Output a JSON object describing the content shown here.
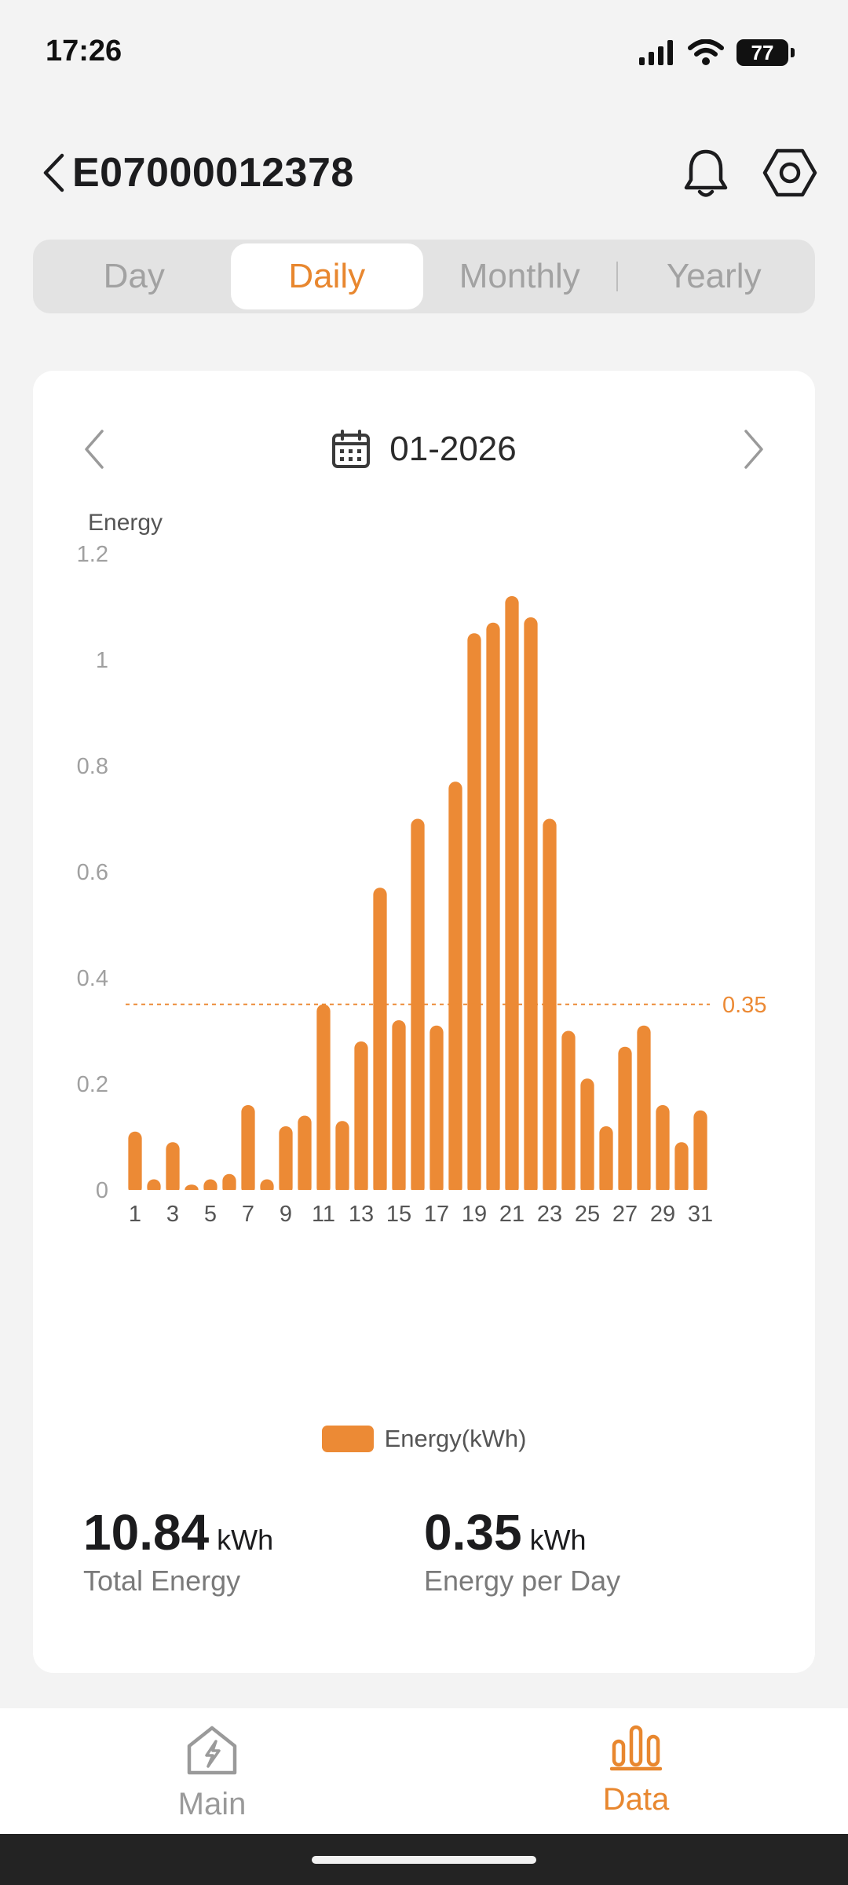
{
  "status_bar": {
    "time": "17:26",
    "battery": "77"
  },
  "header": {
    "title": "E07000012378"
  },
  "tabs": [
    {
      "label": "Day",
      "active": false
    },
    {
      "label": "Daily",
      "active": true
    },
    {
      "label": "Monthly",
      "active": false
    },
    {
      "label": "Yearly",
      "active": false
    }
  ],
  "period": {
    "label": "01-2026"
  },
  "chart_data": {
    "type": "bar",
    "ylabel": "Energy",
    "ylim": [
      0,
      1.2
    ],
    "yticks": [
      "0",
      "0.2",
      "0.4",
      "0.6",
      "0.8",
      "1",
      "1.2"
    ],
    "x": [
      1,
      2,
      3,
      4,
      5,
      6,
      7,
      8,
      9,
      10,
      11,
      12,
      13,
      14,
      15,
      16,
      17,
      18,
      19,
      20,
      21,
      22,
      23,
      24,
      25,
      26,
      27,
      28,
      29,
      30,
      31
    ],
    "xtick_labels": [
      "1",
      "3",
      "5",
      "7",
      "9",
      "11",
      "13",
      "15",
      "17",
      "19",
      "21",
      "23",
      "25",
      "27",
      "29",
      "31"
    ],
    "series": [
      {
        "name": "Energy(kWh)",
        "values": [
          0.11,
          0.02,
          0.09,
          0.01,
          0.02,
          0.03,
          0.16,
          0.02,
          0.12,
          0.14,
          0.35,
          0.13,
          0.28,
          0.57,
          0.32,
          0.7,
          0.31,
          0.77,
          1.05,
          1.07,
          1.12,
          1.08,
          0.7,
          0.3,
          0.21,
          0.12,
          0.27,
          0.31,
          0.16,
          0.09,
          0.15
        ]
      }
    ],
    "reference_line": {
      "value": 0.35,
      "label": "0.35"
    },
    "legend": [
      "Energy(kWh)"
    ],
    "color": "#ec8a35"
  },
  "stats": {
    "total": {
      "value": "10.84",
      "unit": "kWh",
      "label": "Total Energy"
    },
    "per_day": {
      "value": "0.35",
      "unit": "kWh",
      "label": "Energy per Day"
    }
  },
  "bottom_nav": {
    "main": {
      "label": "Main",
      "icon": "home-bolt-icon"
    },
    "data": {
      "label": "Data",
      "icon": "bar-chart-icon"
    }
  },
  "colors": {
    "accent": "#e8872f",
    "bar": "#ec8a35",
    "muted": "#a2a2a2"
  }
}
